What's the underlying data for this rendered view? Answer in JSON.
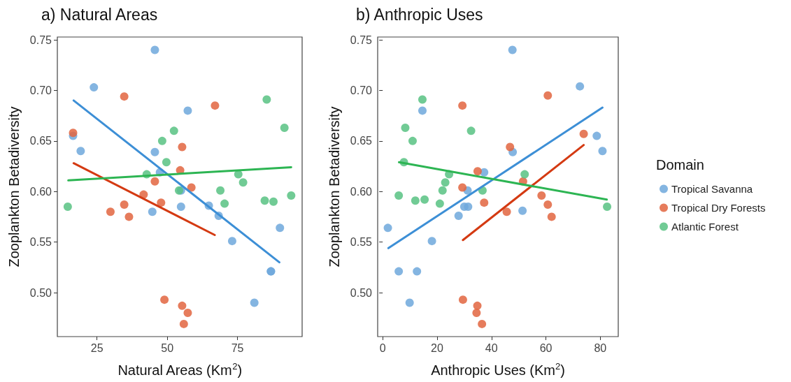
{
  "chart_data": [
    {
      "type": "scatter",
      "title": "a) Natural Areas",
      "xlabel": "Natural Areas (Km$^{2}$)",
      "ylabel": "Zooplankton Betadiversity",
      "xlim": [
        10.9,
        98
      ],
      "xticks": [
        25,
        50,
        75
      ],
      "ylim": [
        0.4565,
        0.7528
      ],
      "yticks": [
        {
          "value": 0.5,
          "label": "0.50"
        },
        {
          "value": 0.55,
          "label": "0.55"
        },
        {
          "value": 0.6,
          "label": "0.60"
        },
        {
          "value": 0.65,
          "label": "0.65"
        },
        {
          "value": 0.7,
          "label": "0.70"
        },
        {
          "value": 0.75,
          "label": "0.75"
        }
      ],
      "grid": false,
      "legend": false,
      "marker": "circle",
      "series": [
        {
          "color": "#6fa8dc",
          "x": [
            45.6,
            23.9,
            57.3,
            16.5,
            19.2,
            45.6,
            47.4,
            54.9,
            44.7,
            54.9,
            64.8,
            68.3,
            73.1,
            90.1,
            86.9,
            86.9,
            81.0
          ],
          "values": [
            0.74,
            0.703,
            0.68,
            0.655,
            0.64,
            0.639,
            0.619,
            0.601,
            0.58,
            0.585,
            0.586,
            0.576,
            0.551,
            0.564,
            0.521,
            0.521,
            0.49
          ]
        },
        {
          "color": "#e2653f",
          "x": [
            34.7,
            67.0,
            16.5,
            55.3,
            54.6,
            45.6,
            58.6,
            41.6,
            47.8,
            34.7,
            29.8,
            36.4,
            49.0,
            55.3,
            57.3,
            55.9
          ],
          "values": [
            0.694,
            0.685,
            0.658,
            0.644,
            0.621,
            0.61,
            0.604,
            0.597,
            0.589,
            0.587,
            0.58,
            0.575,
            0.493,
            0.487,
            0.48,
            0.469
          ]
        },
        {
          "color": "#58c283",
          "x": [
            85.4,
            91.7,
            52.4,
            48.2,
            49.7,
            42.7,
            75.3,
            77.0,
            54.2,
            68.9,
            94.1,
            84.7,
            87.8,
            70.4,
            14.6
          ],
          "values": [
            0.691,
            0.663,
            0.66,
            0.65,
            0.629,
            0.617,
            0.617,
            0.609,
            0.601,
            0.601,
            0.596,
            0.591,
            0.59,
            0.588,
            0.585
          ]
        },
        {
          "type": "line",
          "marker": "none",
          "color": "#3d8fd6",
          "x": [
            16.7,
            89.9
          ],
          "values": [
            0.69,
            0.53
          ]
        },
        {
          "type": "line",
          "marker": "none",
          "color": "#d43a12",
          "x": [
            16.7,
            66.9
          ],
          "values": [
            0.628,
            0.557
          ]
        },
        {
          "type": "line",
          "marker": "none",
          "color": "#2db553",
          "x": [
            14.8,
            94.1
          ],
          "values": [
            0.611,
            0.624
          ]
        }
      ]
    },
    {
      "type": "scatter",
      "title": "b) Anthropic Uses",
      "xlabel": "Anthropic Uses (Km$^{2}$)",
      "ylabel": "Zooplankton Betadiversity",
      "legend_title": "Domain",
      "xlim": [
        -1.85,
        86.6
      ],
      "xticks": [
        0,
        20,
        40,
        60,
        80
      ],
      "ylim": [
        0.4565,
        0.7528
      ],
      "yticks": [
        {
          "value": 0.5,
          "label": "0.50"
        },
        {
          "value": 0.55,
          "label": "0.55"
        },
        {
          "value": 0.6,
          "label": "0.60"
        },
        {
          "value": 0.65,
          "label": "0.65"
        },
        {
          "value": 0.7,
          "label": "0.70"
        },
        {
          "value": 0.75,
          "label": "0.75"
        }
      ],
      "grid": false,
      "legend": "right",
      "marker": "circle",
      "series": [
        {
          "name": "Tropical Savanna",
          "color": "#6fa8dc",
          "x": [
            47.7,
            72.5,
            14.6,
            78.7,
            80.8,
            47.8,
            37.3,
            31.2,
            30.0,
            31.4,
            51.4,
            27.9,
            1.9,
            18.1,
            5.9,
            12.6,
            9.9
          ],
          "values": [
            0.74,
            0.704,
            0.68,
            0.655,
            0.64,
            0.639,
            0.619,
            0.601,
            0.585,
            0.585,
            0.581,
            0.576,
            0.564,
            0.551,
            0.521,
            0.521,
            0.49
          ]
        },
        {
          "name": "Tropical Dry Forests",
          "color": "#e2653f",
          "x": [
            60.7,
            29.3,
            73.9,
            46.8,
            34.9,
            51.6,
            29.3,
            58.4,
            60.7,
            37.3,
            45.6,
            62.1,
            29.5,
            34.8,
            34.5,
            36.5
          ],
          "values": [
            0.695,
            0.685,
            0.657,
            0.644,
            0.62,
            0.61,
            0.604,
            0.596,
            0.587,
            0.589,
            0.58,
            0.575,
            0.493,
            0.487,
            0.48,
            0.469
          ]
        },
        {
          "name": "Atlantic Forest",
          "color": "#58c283",
          "x": [
            14.6,
            8.3,
            32.5,
            11.0,
            7.8,
            24.4,
            52.2,
            23.0,
            22.0,
            36.7,
            5.9,
            12.0,
            15.4,
            21.0,
            82.5
          ],
          "values": [
            0.691,
            0.663,
            0.66,
            0.65,
            0.629,
            0.617,
            0.617,
            0.609,
            0.601,
            0.601,
            0.596,
            0.591,
            0.592,
            0.588,
            0.585
          ]
        },
        {
          "type": "line",
          "marker": "none",
          "color": "#3d8fd6",
          "x": [
            2.1,
            80.8
          ],
          "values": [
            0.544,
            0.683
          ]
        },
        {
          "type": "line",
          "marker": "none",
          "color": "#d43a12",
          "x": [
            29.5,
            73.9
          ],
          "values": [
            0.552,
            0.646
          ]
        },
        {
          "type": "line",
          "marker": "none",
          "color": "#2db553",
          "x": [
            6.0,
            82.4
          ],
          "values": [
            0.629,
            0.592
          ]
        }
      ]
    }
  ]
}
